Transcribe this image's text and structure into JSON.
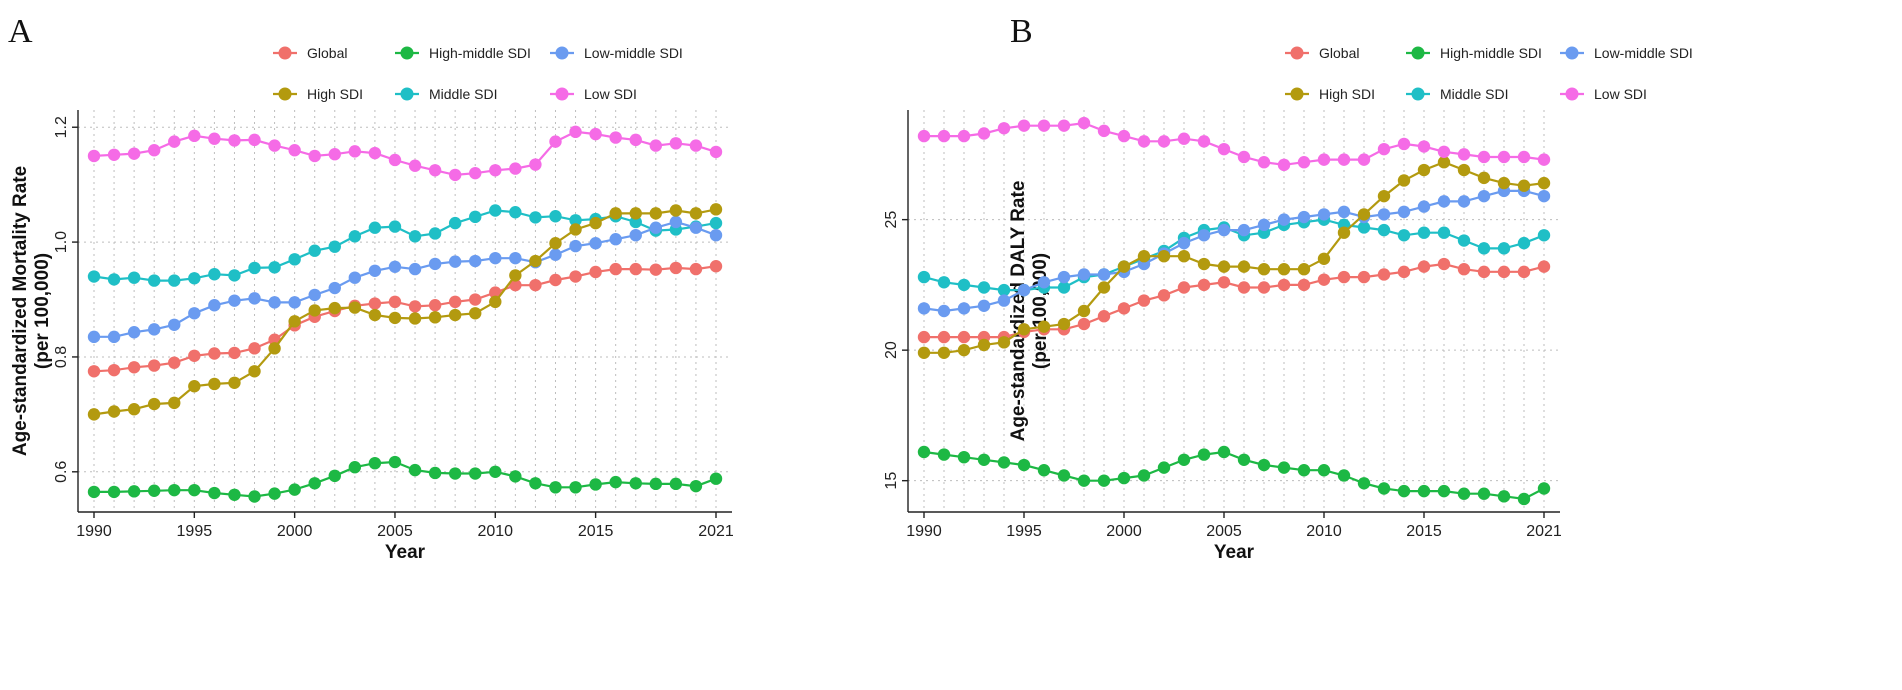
{
  "figure": {
    "panels": [
      "A",
      "B"
    ]
  },
  "legend": {
    "entries": [
      {
        "key": "global",
        "label": "Global",
        "color": "#F0706B"
      },
      {
        "key": "high_middle",
        "label": "High-middle SDI",
        "color": "#1DB844"
      },
      {
        "key": "low_middle",
        "label": "Low-middle SDI",
        "color": "#6A9BF0"
      },
      {
        "key": "high",
        "label": "High SDI",
        "color": "#B39A0F"
      },
      {
        "key": "middle",
        "label": "Middle SDI",
        "color": "#1FBFC6"
      },
      {
        "key": "low",
        "label": "Low SDI",
        "color": "#F56BE6"
      }
    ]
  },
  "chart_data": [
    {
      "panel": "A",
      "type": "line",
      "xlabel": "Year",
      "ylabel": "Age-standardized Mortality Rate",
      "ylabel_sub": "(per 100,000)",
      "xlim": [
        1990,
        2021
      ],
      "ylim": [
        0.53,
        1.23
      ],
      "xticks": [
        1990,
        1995,
        2000,
        2005,
        2010,
        2015,
        2021
      ],
      "yticks": [
        0.6,
        0.8,
        1.0,
        1.2
      ],
      "ytick_labels": [
        "0.6",
        "0.8",
        "1.0",
        "1.2"
      ],
      "x": [
        1990,
        1991,
        1992,
        1993,
        1994,
        1995,
        1996,
        1997,
        1998,
        1999,
        2000,
        2001,
        2002,
        2003,
        2004,
        2005,
        2006,
        2007,
        2008,
        2009,
        2010,
        2011,
        2012,
        2013,
        2014,
        2015,
        2016,
        2017,
        2018,
        2019,
        2020,
        2021
      ],
      "series": [
        {
          "key": "middle",
          "name": "Middle SDI",
          "values": [
            0.94,
            0.935,
            0.938,
            0.933,
            0.933,
            0.937,
            0.944,
            0.942,
            0.955,
            0.956,
            0.97,
            0.985,
            0.992,
            1.01,
            1.025,
            1.027,
            1.01,
            1.015,
            1.033,
            1.044,
            1.055,
            1.052,
            1.043,
            1.045,
            1.038,
            1.04,
            1.045,
            1.035,
            1.02,
            1.022,
            1.027,
            1.033
          ]
        },
        {
          "key": "low_middle",
          "name": "Low-middle SDI",
          "values": [
            0.835,
            0.835,
            0.843,
            0.848,
            0.856,
            0.876,
            0.89,
            0.898,
            0.902,
            0.895,
            0.895,
            0.908,
            0.92,
            0.938,
            0.95,
            0.957,
            0.953,
            0.962,
            0.966,
            0.967,
            0.972,
            0.972,
            0.965,
            0.978,
            0.993,
            0.998,
            1.005,
            1.012,
            1.025,
            1.035,
            1.025,
            1.012
          ]
        },
        {
          "key": "global",
          "name": "Global",
          "values": [
            0.775,
            0.777,
            0.782,
            0.785,
            0.79,
            0.802,
            0.806,
            0.807,
            0.815,
            0.83,
            0.855,
            0.87,
            0.88,
            0.889,
            0.893,
            0.896,
            0.888,
            0.89,
            0.896,
            0.9,
            0.912,
            0.925,
            0.925,
            0.934,
            0.94,
            0.948,
            0.953,
            0.953,
            0.952,
            0.955,
            0.953,
            0.958
          ]
        },
        {
          "key": "high",
          "name": "High SDI",
          "values": [
            0.7,
            0.705,
            0.709,
            0.718,
            0.72,
            0.749,
            0.753,
            0.755,
            0.775,
            0.815,
            0.862,
            0.881,
            0.885,
            0.886,
            0.873,
            0.868,
            0.867,
            0.869,
            0.873,
            0.876,
            0.896,
            0.942,
            0.967,
            0.998,
            1.022,
            1.033,
            1.05,
            1.05,
            1.05,
            1.055,
            1.05,
            1.057
          ]
        },
        {
          "key": "high_middle",
          "name": "High-middle SDI",
          "values": [
            0.565,
            0.565,
            0.566,
            0.567,
            0.568,
            0.568,
            0.563,
            0.56,
            0.557,
            0.562,
            0.569,
            0.58,
            0.593,
            0.608,
            0.615,
            0.617,
            0.603,
            0.598,
            0.597,
            0.597,
            0.6,
            0.592,
            0.58,
            0.573,
            0.573,
            0.578,
            0.582,
            0.58,
            0.579,
            0.579,
            0.575,
            0.588
          ]
        },
        {
          "key": "low",
          "name": "Low SDI",
          "values": [
            1.15,
            1.152,
            1.154,
            1.16,
            1.175,
            1.185,
            1.18,
            1.177,
            1.178,
            1.168,
            1.16,
            1.15,
            1.153,
            1.158,
            1.155,
            1.143,
            1.133,
            1.125,
            1.117,
            1.12,
            1.125,
            1.128,
            1.135,
            1.175,
            1.192,
            1.188,
            1.182,
            1.178,
            1.168,
            1.172,
            1.168,
            1.157
          ]
        }
      ]
    },
    {
      "panel": "B",
      "type": "line",
      "xlabel": "Year",
      "ylabel": "Age-standardized DALY Rate",
      "ylabel_sub": "(per 100,000)",
      "xlim": [
        1990,
        2021
      ],
      "ylim": [
        13.8,
        29.2
      ],
      "xticks": [
        1990,
        1995,
        2000,
        2005,
        2010,
        2015,
        2021
      ],
      "yticks": [
        15,
        20,
        25
      ],
      "ytick_labels": [
        "15",
        "20",
        "25"
      ],
      "x": [
        1990,
        1991,
        1992,
        1993,
        1994,
        1995,
        1996,
        1997,
        1998,
        1999,
        2000,
        2001,
        2002,
        2003,
        2004,
        2005,
        2006,
        2007,
        2008,
        2009,
        2010,
        2011,
        2012,
        2013,
        2014,
        2015,
        2016,
        2017,
        2018,
        2019,
        2020,
        2021
      ],
      "series": [
        {
          "key": "middle",
          "name": "Middle SDI",
          "values": [
            22.8,
            22.6,
            22.5,
            22.4,
            22.3,
            22.3,
            22.4,
            22.4,
            22.8,
            22.9,
            23.2,
            23.5,
            23.8,
            24.3,
            24.6,
            24.7,
            24.4,
            24.5,
            24.8,
            24.9,
            25.0,
            24.8,
            24.7,
            24.6,
            24.4,
            24.5,
            24.5,
            24.2,
            23.9,
            23.9,
            24.1,
            24.4
          ]
        },
        {
          "key": "low_middle",
          "name": "Low-middle SDI",
          "values": [
            21.6,
            21.5,
            21.6,
            21.7,
            21.9,
            22.3,
            22.6,
            22.8,
            22.9,
            22.9,
            23.0,
            23.3,
            23.7,
            24.1,
            24.4,
            24.6,
            24.6,
            24.8,
            25.0,
            25.1,
            25.2,
            25.3,
            25.1,
            25.2,
            25.3,
            25.5,
            25.7,
            25.7,
            25.9,
            26.1,
            26.1,
            25.9
          ]
        },
        {
          "key": "global",
          "name": "Global",
          "values": [
            20.5,
            20.5,
            20.5,
            20.5,
            20.5,
            20.7,
            20.8,
            20.8,
            21.0,
            21.3,
            21.6,
            21.9,
            22.1,
            22.4,
            22.5,
            22.6,
            22.4,
            22.4,
            22.5,
            22.5,
            22.7,
            22.8,
            22.8,
            22.9,
            23.0,
            23.2,
            23.3,
            23.1,
            23.0,
            23.0,
            23.0,
            23.2
          ]
        },
        {
          "key": "high",
          "name": "High SDI",
          "values": [
            19.9,
            19.9,
            20.0,
            20.2,
            20.3,
            20.8,
            20.9,
            21.0,
            21.5,
            22.4,
            23.2,
            23.6,
            23.6,
            23.6,
            23.3,
            23.2,
            23.2,
            23.1,
            23.1,
            23.1,
            23.5,
            24.5,
            25.2,
            25.9,
            26.5,
            26.9,
            27.2,
            26.9,
            26.6,
            26.4,
            26.3,
            26.4
          ]
        },
        {
          "key": "high_middle",
          "name": "High-middle SDI",
          "values": [
            16.1,
            16.0,
            15.9,
            15.8,
            15.7,
            15.6,
            15.4,
            15.2,
            15.0,
            15.0,
            15.1,
            15.2,
            15.5,
            15.8,
            16.0,
            16.1,
            15.8,
            15.6,
            15.5,
            15.4,
            15.4,
            15.2,
            14.9,
            14.7,
            14.6,
            14.6,
            14.6,
            14.5,
            14.5,
            14.4,
            14.3,
            14.7
          ]
        },
        {
          "key": "low",
          "name": "Low SDI",
          "values": [
            28.2,
            28.2,
            28.2,
            28.3,
            28.5,
            28.6,
            28.6,
            28.6,
            28.7,
            28.4,
            28.2,
            28.0,
            28.0,
            28.1,
            28.0,
            27.7,
            27.4,
            27.2,
            27.1,
            27.2,
            27.3,
            27.3,
            27.3,
            27.7,
            27.9,
            27.8,
            27.6,
            27.5,
            27.4,
            27.4,
            27.4,
            27.3
          ]
        }
      ]
    }
  ]
}
